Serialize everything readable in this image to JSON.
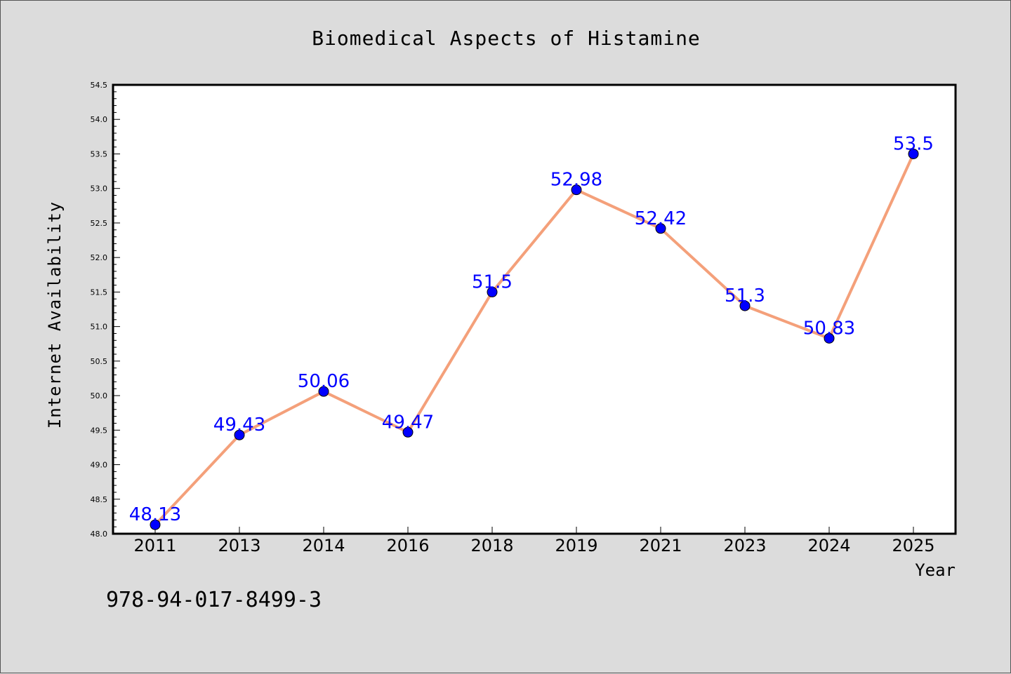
{
  "chart_data": {
    "type": "line",
    "title": "Biomedical Aspects of Histamine",
    "xlabel": "Year",
    "ylabel": "Internet Availability",
    "categories": [
      "2011",
      "2013",
      "2014",
      "2016",
      "2018",
      "2019",
      "2021",
      "2023",
      "2024",
      "2025"
    ],
    "series": [
      {
        "values": [
          48.13,
          49.43,
          50.06,
          49.47,
          51.5,
          52.98,
          52.42,
          51.3,
          50.83,
          53.5
        ],
        "data_labels": [
          "48.13",
          "49.43",
          "50.06",
          "49.47",
          "51.5",
          "52.98",
          "52.42",
          "51.3",
          "50.83",
          "53.5"
        ],
        "line_color": "#f4a07a",
        "marker_color": "#0000ff",
        "label_color": "#0000ff"
      }
    ],
    "ylim": [
      48.0,
      54.5
    ],
    "yticks": [
      "48.0",
      "48.5",
      "49.0",
      "49.5",
      "50.0",
      "50.5",
      "51.0",
      "51.5",
      "52.0",
      "52.5",
      "53.0",
      "53.5",
      "54.0",
      "54.5"
    ],
    "grid": false,
    "legend": "none"
  },
  "footer_text": "978-94-017-8499-3",
  "colors": {
    "background": "#dcdcdc",
    "plot_background": "#ffffff",
    "axis": "#000000"
  }
}
